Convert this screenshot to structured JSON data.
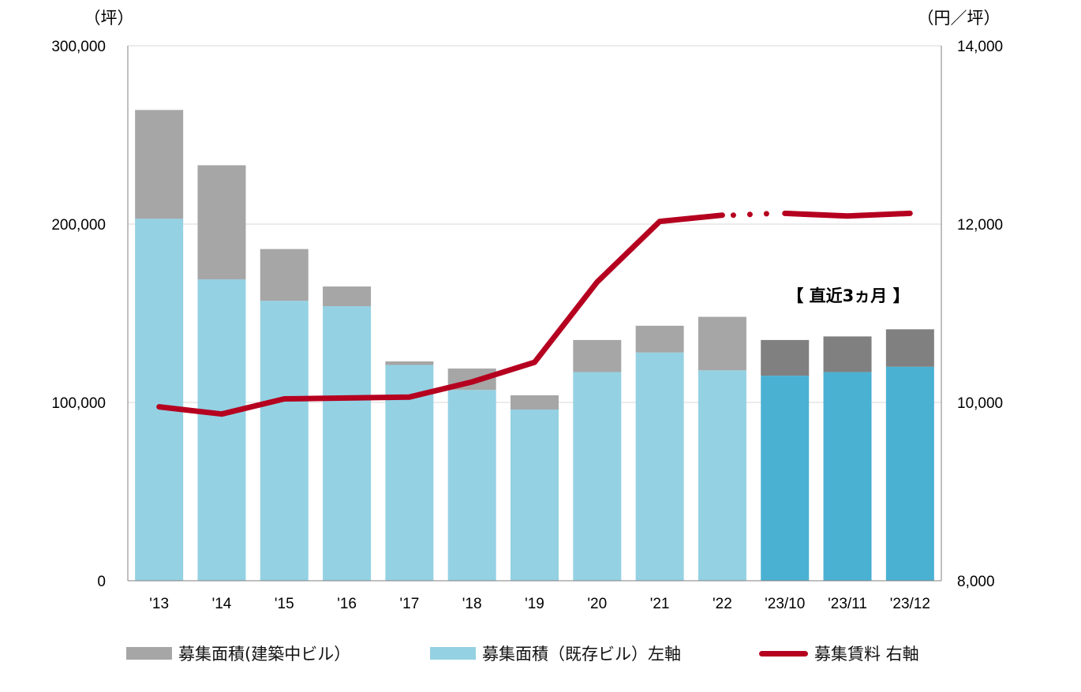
{
  "chart_data": {
    "type": "bar",
    "categories": [
      "'13",
      "'14",
      "'15",
      "'16",
      "'17",
      "'18",
      "'19",
      "'20",
      "'21",
      "'22",
      "'23/10",
      "'23/11",
      "'23/12"
    ],
    "left_axis": {
      "unit": "（坪）",
      "ylim": [
        0,
        300000
      ],
      "ticks": [
        0,
        100000,
        200000,
        300000
      ],
      "tick_labels": [
        "0",
        "100,000",
        "200,000",
        "300,000"
      ]
    },
    "right_axis": {
      "unit": "（円／坪）",
      "ylim": [
        8000,
        14000
      ],
      "ticks": [
        8000,
        10000,
        12000,
        14000
      ],
      "tick_labels": [
        "8,000",
        "10,000",
        "12,000",
        "14,000"
      ]
    },
    "series": [
      {
        "name": "募集面積（既存ビル）左軸",
        "kind": "bar-stack-bottom",
        "values": [
          203000,
          169000,
          157000,
          154000,
          121000,
          107000,
          96000,
          117000,
          128000,
          118000,
          115000,
          117000,
          120000
        ]
      },
      {
        "name": "募集面積(建築中ビル）",
        "kind": "bar-stack-top",
        "values": [
          61000,
          64000,
          29000,
          11000,
          2000,
          12000,
          8000,
          18000,
          15000,
          30000,
          20000,
          20000,
          21000
        ]
      },
      {
        "name": "募集賃料 右軸",
        "kind": "line",
        "axis": "right",
        "values": [
          9950,
          9870,
          10040,
          10050,
          10060,
          10230,
          10450,
          11350,
          12030,
          12100,
          12120,
          12090,
          12120
        ]
      }
    ],
    "annotation": "【 直近3ヵ月 】",
    "grid": true,
    "legend_position": "bottom",
    "colors": {
      "existing": "#94d1e3",
      "existing_recent": "#4ab1d3",
      "construction": "#a6a6a6",
      "construction_recent": "#808080",
      "rent_line": "#b5001f",
      "grid": "#d9d9d9",
      "axis": "#808080"
    }
  },
  "legend": {
    "construction": "募集面積(建築中ビル）",
    "existing": "募集面積（既存ビル）左軸",
    "rent": "募集賃料 右軸"
  }
}
